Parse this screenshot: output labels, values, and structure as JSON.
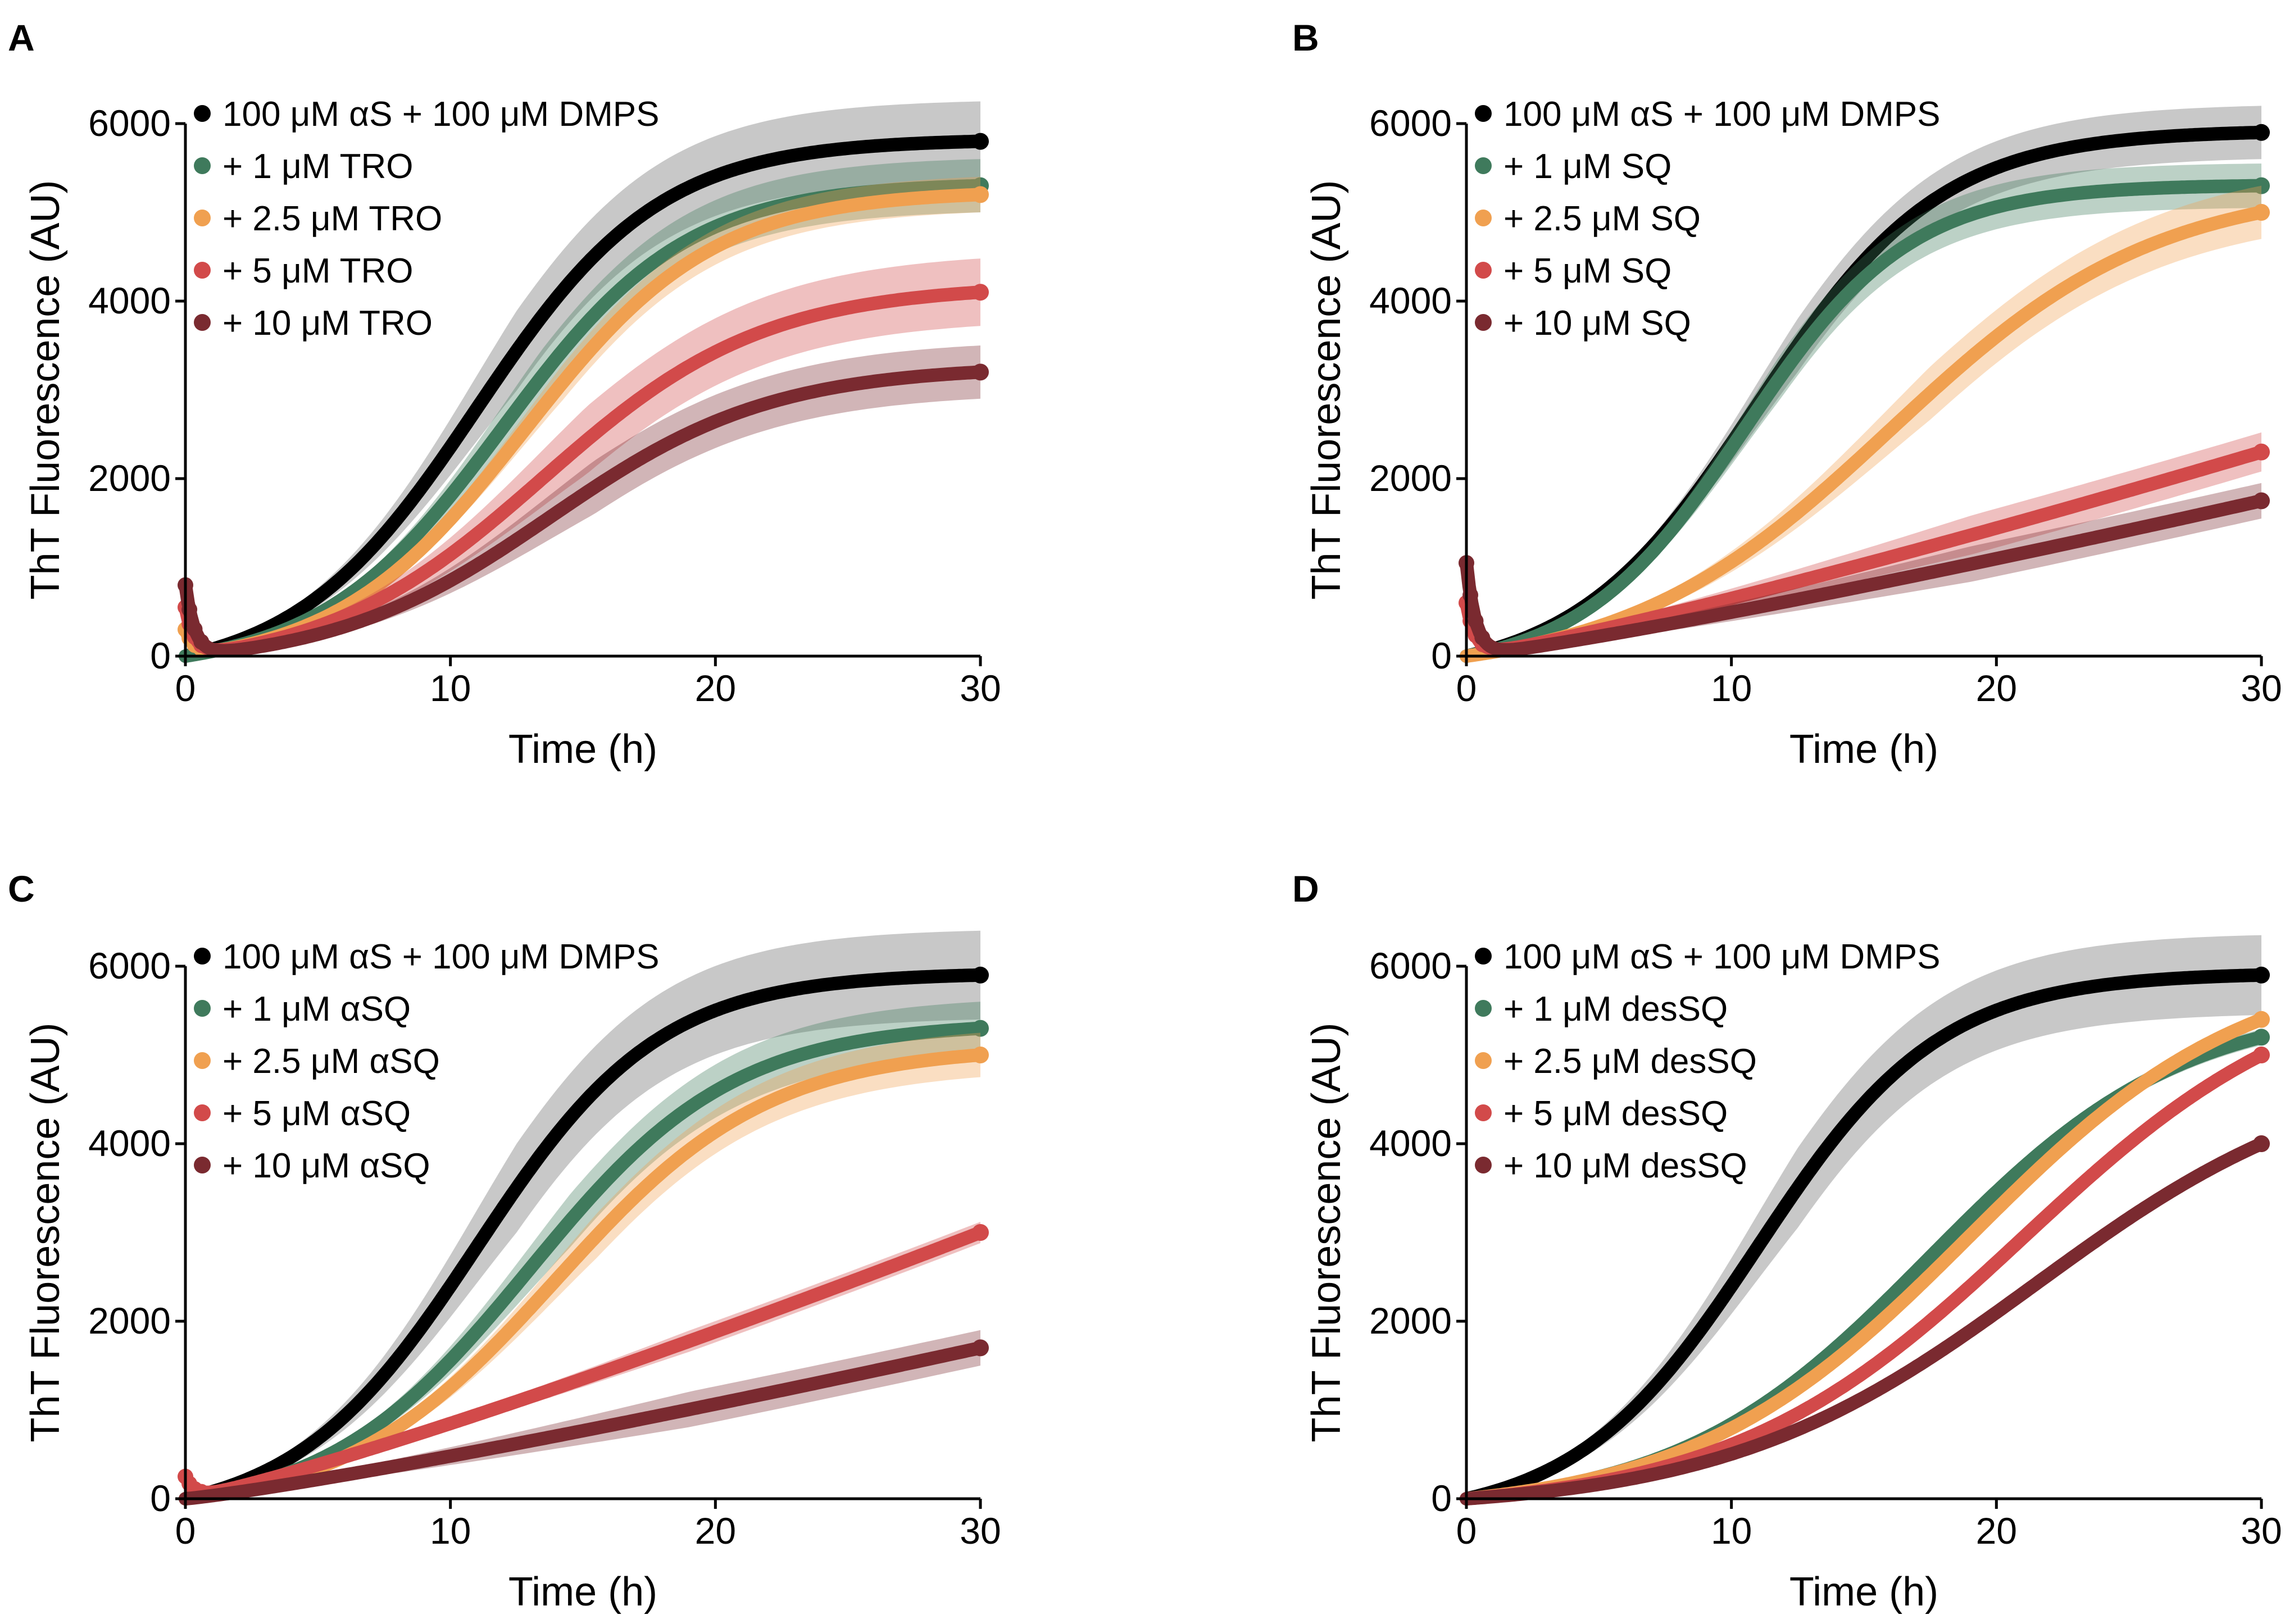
{
  "colors": {
    "black": "#000000",
    "green": "#3f7a5c",
    "orange": "#f0a050",
    "red": "#d24a4a",
    "darkred": "#7a2a30",
    "error_black": "#9a9a9a"
  },
  "chart_data": [
    {
      "panel": "A",
      "type": "line",
      "xlabel": "Time (h)",
      "ylabel": "ThT Fluorescence (AU)",
      "xlim": [
        0,
        30
      ],
      "ylim": [
        0,
        6000
      ],
      "xticks": [
        "0",
        "10",
        "20",
        "30"
      ],
      "yticks": [
        "0",
        "2000",
        "4000",
        "6000"
      ],
      "legend_position": "top-left",
      "series": [
        {
          "name": "100 μM αS + 100 μM DMPS",
          "color": "black",
          "plateau": 5800,
          "midpoint": 11.0,
          "rate": 0.29,
          "err": 450,
          "spike": 0
        },
        {
          "name": "+ 1 μM TRO",
          "color": "green",
          "plateau": 5300,
          "midpoint": 12.0,
          "rate": 0.29,
          "err": 300,
          "spike": 0
        },
        {
          "name": "+ 2.5 μM TRO",
          "color": "orange",
          "plateau": 5200,
          "midpoint": 12.8,
          "rate": 0.28,
          "err": 200,
          "spike": 300
        },
        {
          "name": "+ 5 μM TRO",
          "color": "red",
          "plateau": 4100,
          "midpoint": 13.5,
          "rate": 0.24,
          "err": 380,
          "spike": 550
        },
        {
          "name": "+ 10 μM TRO",
          "color": "darkred",
          "plateau": 3200,
          "midpoint": 13.8,
          "rate": 0.24,
          "err": 300,
          "spike": 800
        }
      ]
    },
    {
      "panel": "B",
      "type": "line",
      "xlabel": "Time (h)",
      "ylabel": "ThT Fluorescence (AU)",
      "xlim": [
        0,
        30
      ],
      "ylim": [
        0,
        6000
      ],
      "xticks": [
        "0",
        "10",
        "20",
        "30"
      ],
      "yticks": [
        "0",
        "2000",
        "4000",
        "6000"
      ],
      "legend_position": "top-left",
      "series": [
        {
          "name": "100 μM αS + 100 μM DMPS",
          "color": "black",
          "plateau": 5900,
          "midpoint": 11.0,
          "rate": 0.29,
          "err": 300,
          "spike": 0
        },
        {
          "name": "+ 1 μM SQ",
          "color": "green",
          "plateau": 5300,
          "midpoint": 10.5,
          "rate": 0.32,
          "err": 250,
          "spike": 0
        },
        {
          "name": "+ 2.5 μM SQ",
          "color": "orange",
          "plateau": 5000,
          "midpoint": 16.0,
          "rate": 0.2,
          "err": 300,
          "spike": 0
        },
        {
          "name": "+ 5 μM SQ",
          "color": "red",
          "plateau": 2300,
          "midpoint": 0,
          "rate": 0,
          "err": 220,
          "spike": 600
        },
        {
          "name": "+ 10 μM SQ",
          "color": "darkred",
          "plateau": 1750,
          "midpoint": 0,
          "rate": 0,
          "err": 200,
          "spike": 1050
        }
      ]
    },
    {
      "panel": "C",
      "type": "line",
      "xlabel": "Time (h)",
      "ylabel": "ThT Fluorescence (AU)",
      "xlim": [
        0,
        30
      ],
      "ylim": [
        0,
        6000
      ],
      "xticks": [
        "0",
        "10",
        "20",
        "30"
      ],
      "yticks": [
        "0",
        "2000",
        "4000",
        "6000"
      ],
      "legend_position": "top-left",
      "series": [
        {
          "name": "100 μM αS + 100 μM DMPS",
          "color": "black",
          "plateau": 5900,
          "midpoint": 11.0,
          "rate": 0.29,
          "err": 500,
          "spike": 0
        },
        {
          "name": "+ 1 μM αSQ",
          "color": "green",
          "plateau": 5300,
          "midpoint": 13.0,
          "rate": 0.26,
          "err": 300,
          "spike": 0
        },
        {
          "name": "+ 2.5 μM αSQ",
          "color": "orange",
          "plateau": 5000,
          "midpoint": 14.0,
          "rate": 0.25,
          "err": 250,
          "spike": 0
        },
        {
          "name": "+ 5 μM αSQ",
          "color": "red",
          "plateau": 3000,
          "midpoint": 0,
          "rate": 0,
          "err": 120,
          "spike": 250
        },
        {
          "name": "+ 10 μM αSQ",
          "color": "darkred",
          "plateau": 1700,
          "midpoint": 0,
          "rate": 0,
          "err": 200,
          "spike": 0
        }
      ]
    },
    {
      "panel": "D",
      "type": "line",
      "xlabel": "Time (h)",
      "ylabel": "ThT Fluorescence (AU)",
      "xlim": [
        0,
        30
      ],
      "ylim": [
        0,
        6000
      ],
      "xticks": [
        "0",
        "10",
        "20",
        "30"
      ],
      "yticks": [
        "0",
        "2000",
        "4000",
        "6000"
      ],
      "legend_position": "top-left",
      "series": [
        {
          "name": "100 μM αS + 100 μM DMPS",
          "color": "black",
          "plateau": 5900,
          "midpoint": 11.0,
          "rate": 0.29,
          "err": 450,
          "spike": 0
        },
        {
          "name": "+ 1 μM desSQ",
          "color": "green",
          "plateau": 5200,
          "midpoint": 17.5,
          "rate": 0.21,
          "err": 90,
          "spike": 0
        },
        {
          "name": "+ 2.5 μM desSQ",
          "color": "orange",
          "plateau": 5400,
          "midpoint": 19.0,
          "rate": 0.19,
          "err": 60,
          "spike": 0
        },
        {
          "name": "+ 5 μM desSQ",
          "color": "red",
          "plateau": 5000,
          "midpoint": 21.0,
          "rate": 0.18,
          "err": 60,
          "spike": 0
        },
        {
          "name": "+ 10 μM desSQ",
          "color": "darkred",
          "plateau": 4000,
          "midpoint": 21.5,
          "rate": 0.17,
          "err": 50,
          "spike": 0
        }
      ]
    }
  ]
}
